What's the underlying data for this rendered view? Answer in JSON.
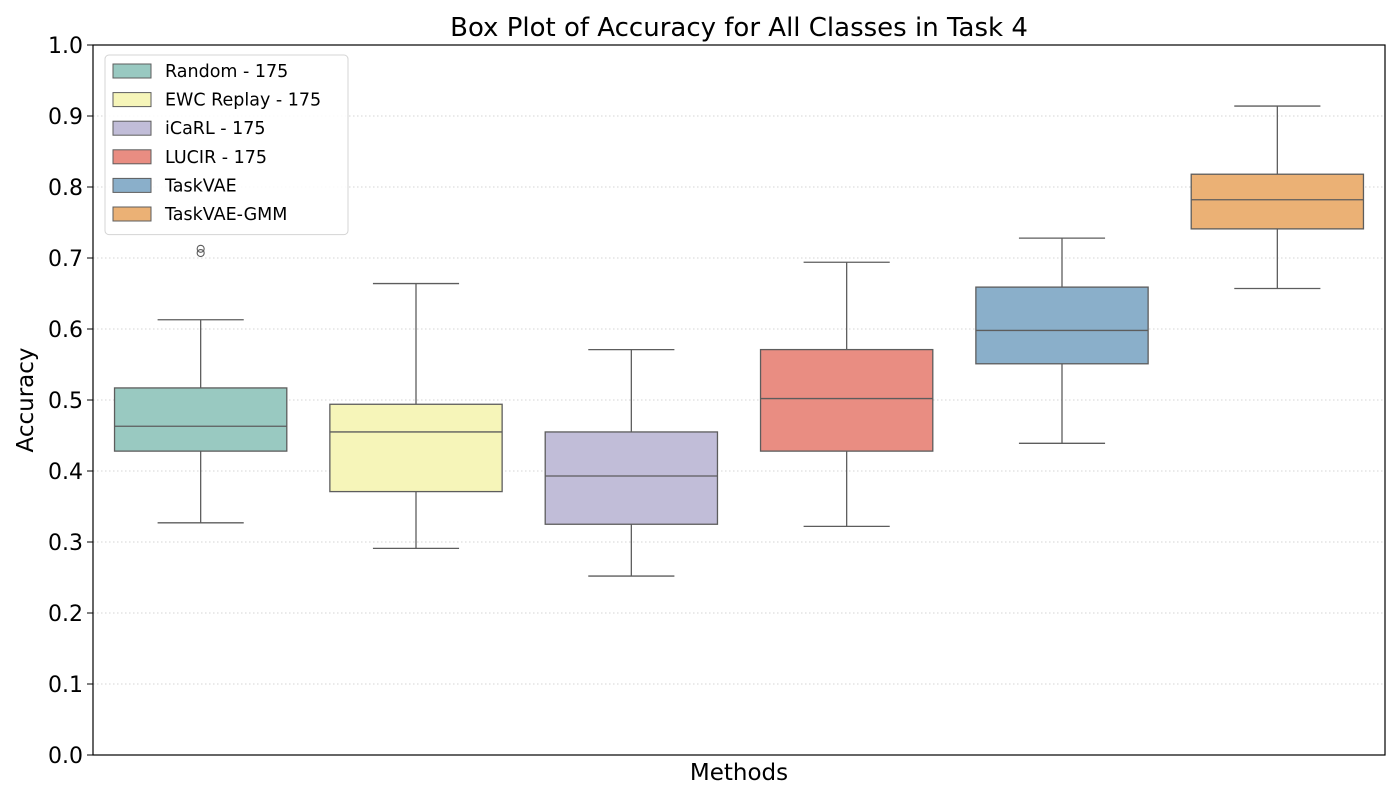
{
  "chart_data": {
    "type": "box",
    "title": "Box Plot of Accuracy for All Classes in Task 4",
    "xlabel": "Methods",
    "ylabel": "Accuracy",
    "ylim": [
      0,
      1.0
    ],
    "yticks": [
      "0.0",
      "0.1",
      "0.2",
      "0.3",
      "0.4",
      "0.5",
      "0.6",
      "0.7",
      "0.8",
      "0.9",
      "1.0"
    ],
    "grid": "y-dotted",
    "legend_position": "top-left",
    "series": [
      {
        "name": "Random - 175",
        "color": "#99c9c1",
        "whisker_low": 0.327,
        "q1": 0.428,
        "median": 0.463,
        "q3": 0.517,
        "whisker_high": 0.613,
        "outliers": [
          0.707,
          0.713
        ]
      },
      {
        "name": "EWC Replay - 175",
        "color": "#f6f5b9",
        "whisker_low": 0.291,
        "q1": 0.371,
        "median": 0.455,
        "q3": 0.494,
        "whisker_high": 0.664,
        "outliers": []
      },
      {
        "name": "iCaRL - 175",
        "color": "#c1bdd8",
        "whisker_low": 0.252,
        "q1": 0.325,
        "median": 0.393,
        "q3": 0.455,
        "whisker_high": 0.571,
        "outliers": []
      },
      {
        "name": "LUCIR - 175",
        "color": "#e98d82",
        "whisker_low": 0.322,
        "q1": 0.428,
        "median": 0.502,
        "q3": 0.571,
        "whisker_high": 0.694,
        "outliers": []
      },
      {
        "name": "TaskVAE",
        "color": "#8aafca",
        "whisker_low": 0.439,
        "q1": 0.551,
        "median": 0.598,
        "q3": 0.659,
        "whisker_high": 0.728,
        "outliers": []
      },
      {
        "name": "TaskVAE-GMM",
        "color": "#ebb175",
        "whisker_low": 0.657,
        "q1": 0.741,
        "median": 0.782,
        "q3": 0.818,
        "whisker_high": 0.914,
        "outliers": []
      }
    ]
  }
}
